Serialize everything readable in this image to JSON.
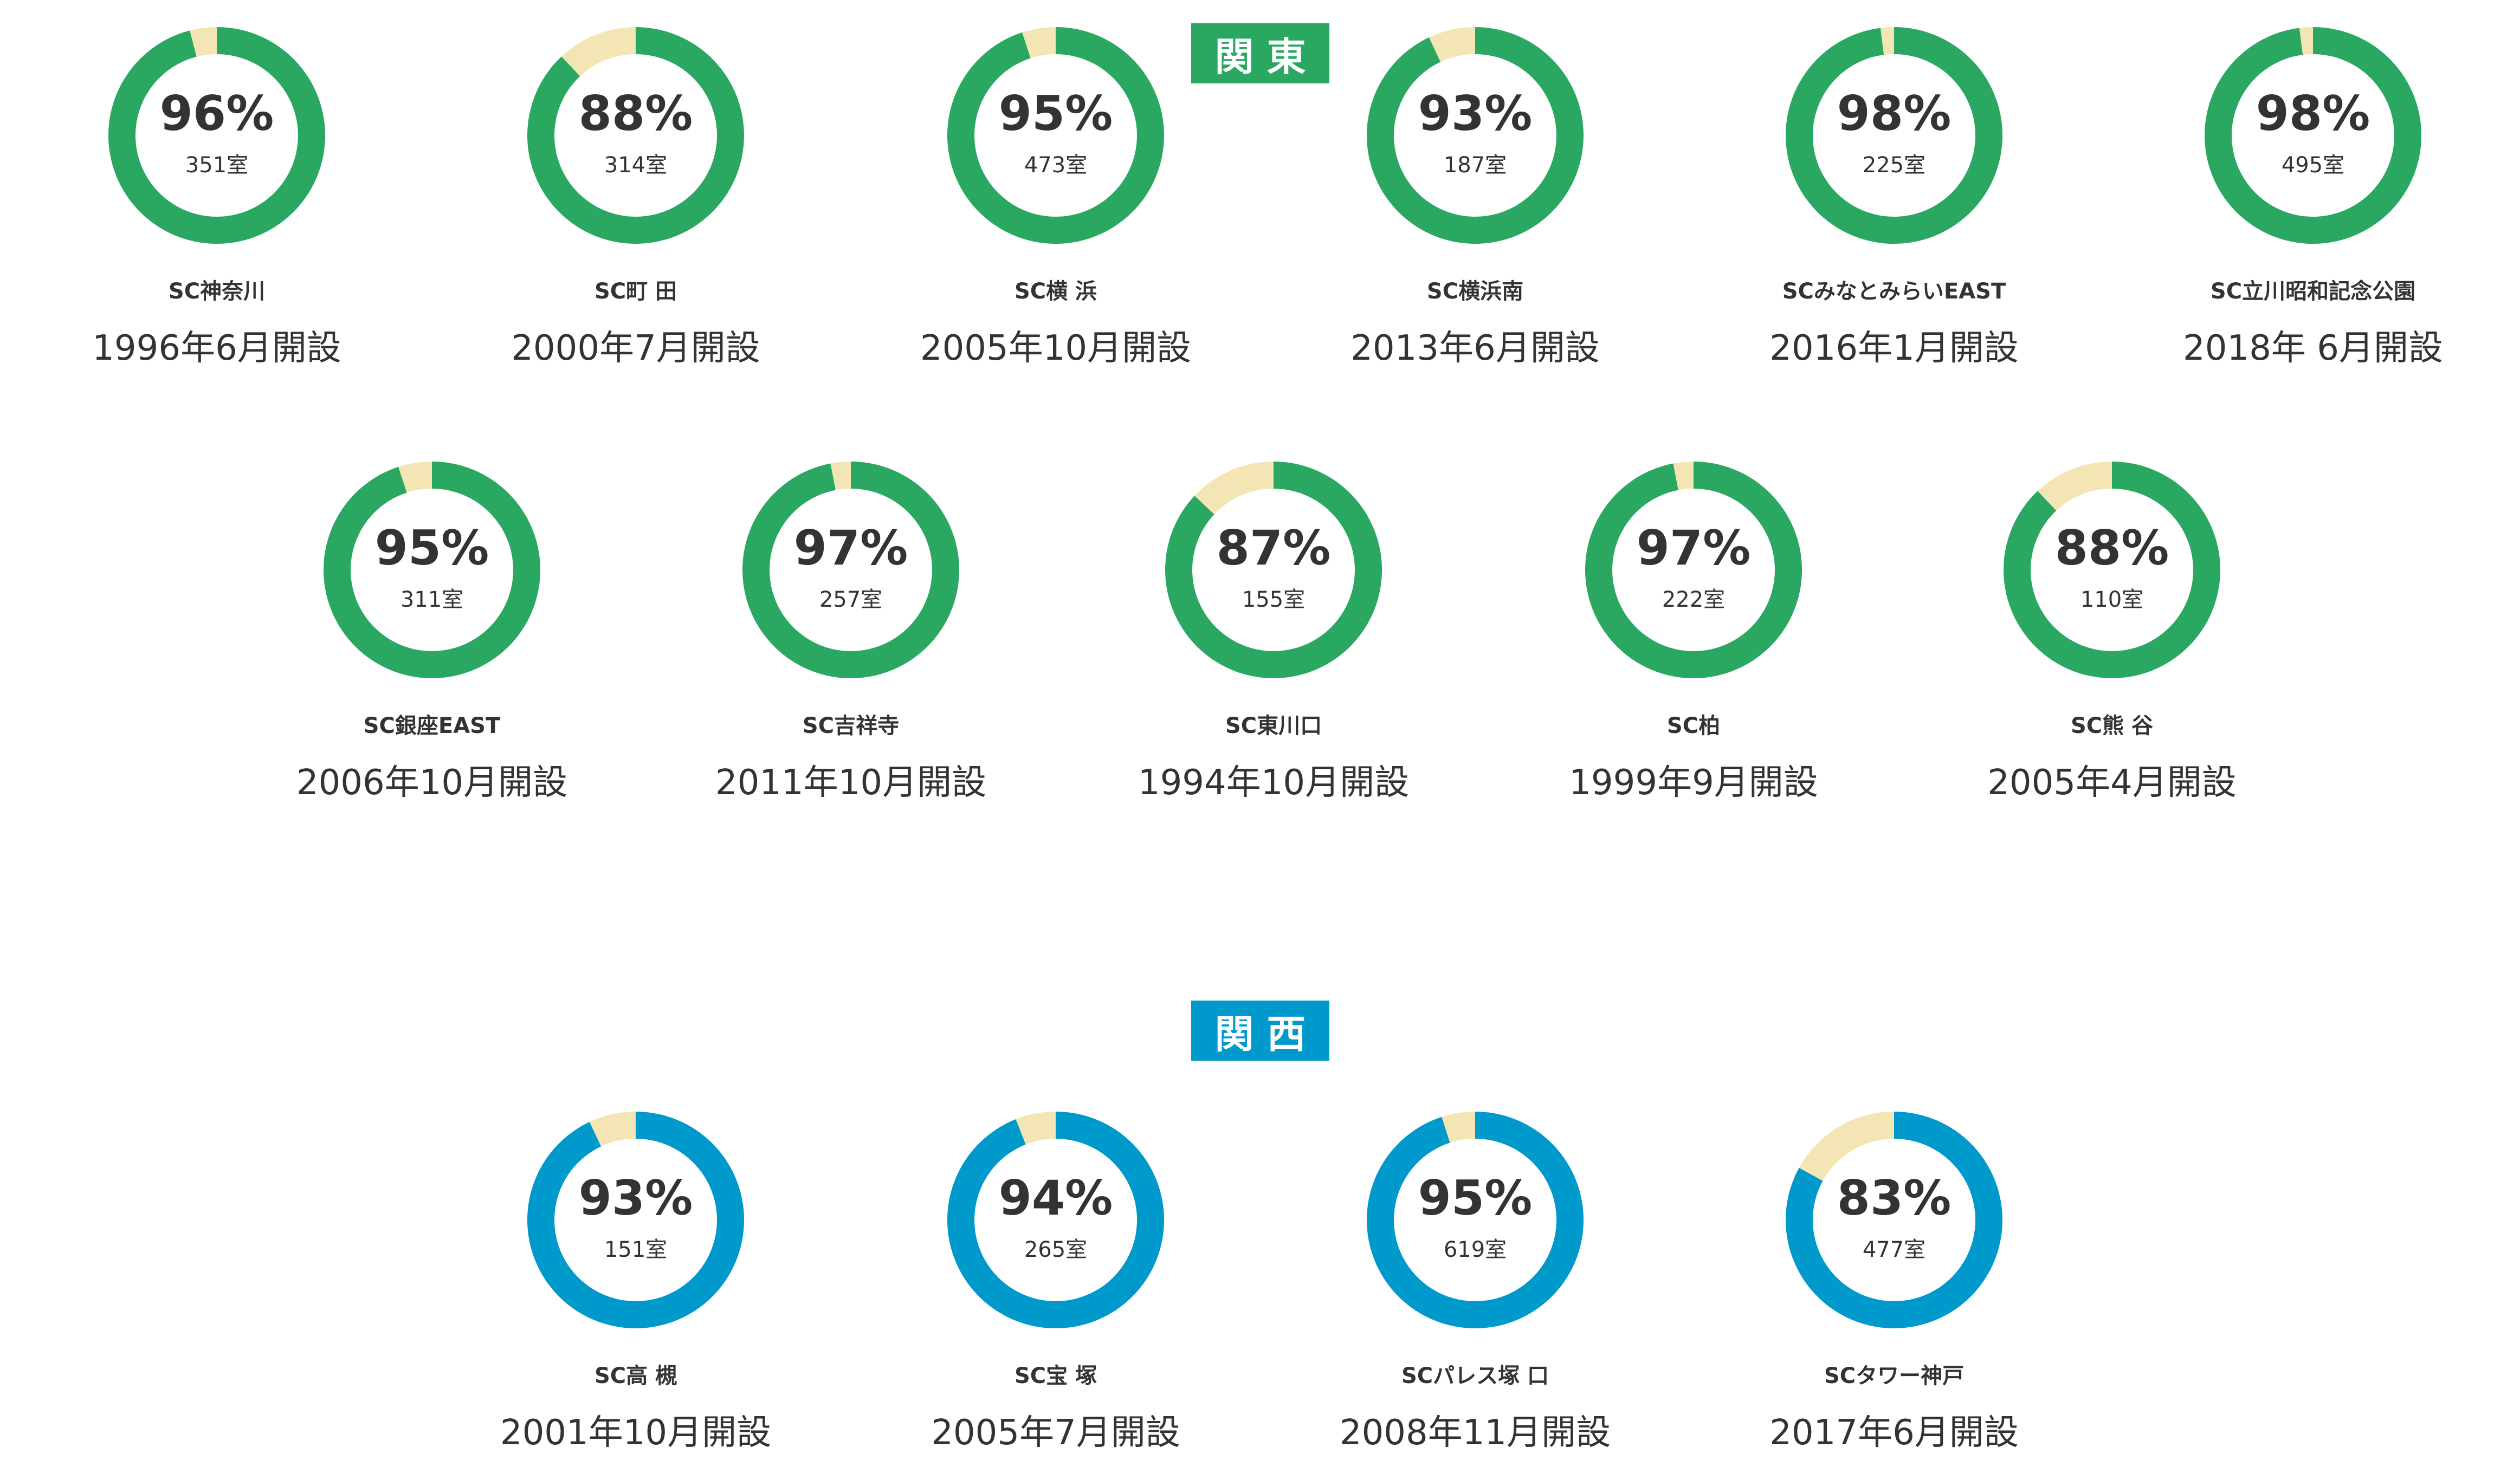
{
  "colors": {
    "kanto": "#2aa761",
    "kansai": "#0099cc",
    "remainder": "#f3e5b4",
    "inner": "#ffffff",
    "text": "#333333"
  },
  "chart_data": [
    {
      "type": "donut",
      "region": "関東",
      "color": "#2aa761",
      "facilities": [
        {
          "name": "SC神奈川",
          "occupancy": 96,
          "percent_label": "96%",
          "rooms": "351室",
          "opened": "1996年6月開設"
        },
        {
          "name": "SC町 田",
          "occupancy": 88,
          "percent_label": "88%",
          "rooms": "314室",
          "opened": "2000年7月開設"
        },
        {
          "name": "SC横 浜",
          "occupancy": 95,
          "percent_label": "95%",
          "rooms": "473室",
          "opened": "2005年10月開設"
        },
        {
          "name": "SC横浜南",
          "occupancy": 93,
          "percent_label": "93%",
          "rooms": "187室",
          "opened": "2013年6月開設"
        },
        {
          "name": "SCみなとみらいEAST",
          "occupancy": 98,
          "percent_label": "98%",
          "rooms": "225室",
          "opened": "2016年1月開設"
        },
        {
          "name": "SC立川昭和記念公園",
          "occupancy": 98,
          "percent_label": "98%",
          "rooms": "495室",
          "opened": "2018年 6月開設"
        },
        {
          "name": "SC銀座EAST",
          "occupancy": 95,
          "percent_label": "95%",
          "rooms": "311室",
          "opened": "2006年10月開設"
        },
        {
          "name": "SC吉祥寺",
          "occupancy": 97,
          "percent_label": "97%",
          "rooms": "257室",
          "opened": "2011年10月開設"
        },
        {
          "name": "SC東川口",
          "occupancy": 87,
          "percent_label": "87%",
          "rooms": "155室",
          "opened": "1994年10月開設"
        },
        {
          "name": "SC柏",
          "occupancy": 97,
          "percent_label": "97%",
          "rooms": "222室",
          "opened": "1999年9月開設"
        },
        {
          "name": "SC熊 谷",
          "occupancy": 88,
          "percent_label": "88%",
          "rooms": "110室",
          "opened": "2005年4月開設"
        }
      ]
    },
    {
      "type": "donut",
      "region": "関西",
      "color": "#0099cc",
      "facilities": [
        {
          "name": "SC高 槻",
          "occupancy": 93,
          "percent_label": "93%",
          "rooms": "151室",
          "opened": "2001年10月開設"
        },
        {
          "name": "SC宝 塚",
          "occupancy": 94,
          "percent_label": "94%",
          "rooms": "265室",
          "opened": "2005年7月開設"
        },
        {
          "name": "SCパレス塚 口",
          "occupancy": 95,
          "percent_label": "95%",
          "rooms": "619室",
          "opened": "2008年11月開設"
        },
        {
          "name": "SCタワー神戸",
          "occupancy": 83,
          "percent_label": "83%",
          "rooms": "477室",
          "opened": "2017年6月開設"
        }
      ]
    }
  ]
}
